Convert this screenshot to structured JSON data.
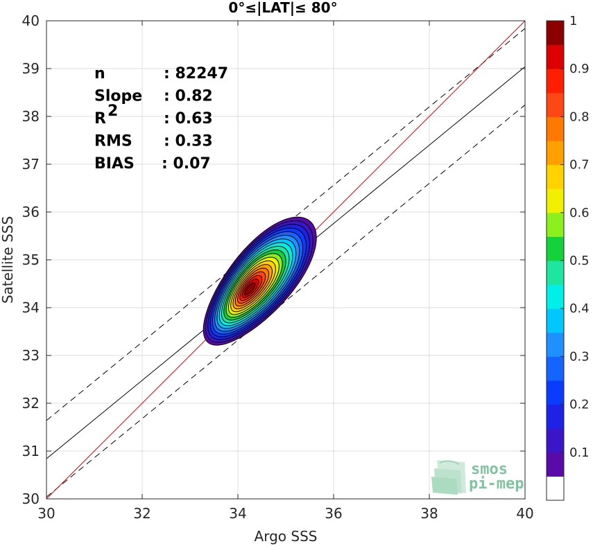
{
  "chart_data": {
    "type": "contour",
    "title": "0°≤|LAT|≤ 80°",
    "xlabel": "Argo SSS",
    "ylabel": "Satellite SSS",
    "xlim": [
      30,
      40
    ],
    "ylim": [
      30,
      40
    ],
    "x_ticks": [
      30,
      32,
      34,
      36,
      38,
      40
    ],
    "y_ticks": [
      30,
      31,
      32,
      33,
      34,
      35,
      36,
      37,
      38,
      39,
      40
    ],
    "grid": true,
    "stats": [
      {
        "label": "n",
        "value": ": 82247"
      },
      {
        "label": "Slope",
        "value": ": 0.82"
      },
      {
        "label": "R",
        "sup": "2",
        "value": ": 0.63"
      },
      {
        "label": "RMS",
        "value": ": 0.33"
      },
      {
        "label": "BIAS",
        "value": ": 0.07"
      }
    ],
    "lines": {
      "identity": {
        "color": "#e00000",
        "slope": 1,
        "intercept": 0
      },
      "fit": {
        "color": "#000000",
        "slope": 0.82,
        "intercept": 6.24
      },
      "fit_plus_2rms": {
        "color": "#000000",
        "dash": true,
        "slope": 0.82,
        "intercept": 7.04
      },
      "fit_minus_2rms": {
        "color": "#000000",
        "dash": true,
        "slope": 0.82,
        "intercept": 5.44
      }
    },
    "density": {
      "center": [
        34.45,
        34.55
      ],
      "major_axis_angle_deg": 50,
      "peak_secondary": [
        34.0,
        34.2
      ],
      "outer_extent": {
        "x": [
          33.5,
          35.65
        ],
        "y": [
          33.3,
          35.65
        ]
      }
    },
    "colorbar": {
      "range": [
        0,
        1
      ],
      "ticks": [
        "0.1",
        "0.2",
        "0.3",
        "0.4",
        "0.5",
        "0.6",
        "0.7",
        "0.8",
        "0.9",
        "1"
      ],
      "levels": [
        {
          "from": 0.0,
          "to": 0.05,
          "color": "#ffffff"
        },
        {
          "from": 0.05,
          "to": 0.1,
          "color": "#5a0aa8"
        },
        {
          "from": 0.1,
          "to": 0.15,
          "color": "#3a16c8"
        },
        {
          "from": 0.15,
          "to": 0.2,
          "color": "#1e22e6"
        },
        {
          "from": 0.2,
          "to": 0.25,
          "color": "#0a3cff"
        },
        {
          "from": 0.25,
          "to": 0.3,
          "color": "#1464ff"
        },
        {
          "from": 0.3,
          "to": 0.35,
          "color": "#1e90ff"
        },
        {
          "from": 0.35,
          "to": 0.4,
          "color": "#00c8ff"
        },
        {
          "from": 0.4,
          "to": 0.45,
          "color": "#00f0e8"
        },
        {
          "from": 0.45,
          "to": 0.5,
          "color": "#1ee6a0"
        },
        {
          "from": 0.5,
          "to": 0.55,
          "color": "#14d23c"
        },
        {
          "from": 0.55,
          "to": 0.6,
          "color": "#8cf01e"
        },
        {
          "from": 0.6,
          "to": 0.65,
          "color": "#f0f000"
        },
        {
          "from": 0.65,
          "to": 0.7,
          "color": "#ffd200"
        },
        {
          "from": 0.7,
          "to": 0.75,
          "color": "#ffa000"
        },
        {
          "from": 0.75,
          "to": 0.8,
          "color": "#ff7800"
        },
        {
          "from": 0.8,
          "to": 0.85,
          "color": "#ff4614"
        },
        {
          "from": 0.85,
          "to": 0.9,
          "color": "#ff1e00"
        },
        {
          "from": 0.9,
          "to": 0.95,
          "color": "#dc0000"
        },
        {
          "from": 0.95,
          "to": 1.0,
          "color": "#8c0000"
        }
      ]
    }
  },
  "logo": {
    "line1": "smos",
    "line2": "pi-mep"
  }
}
